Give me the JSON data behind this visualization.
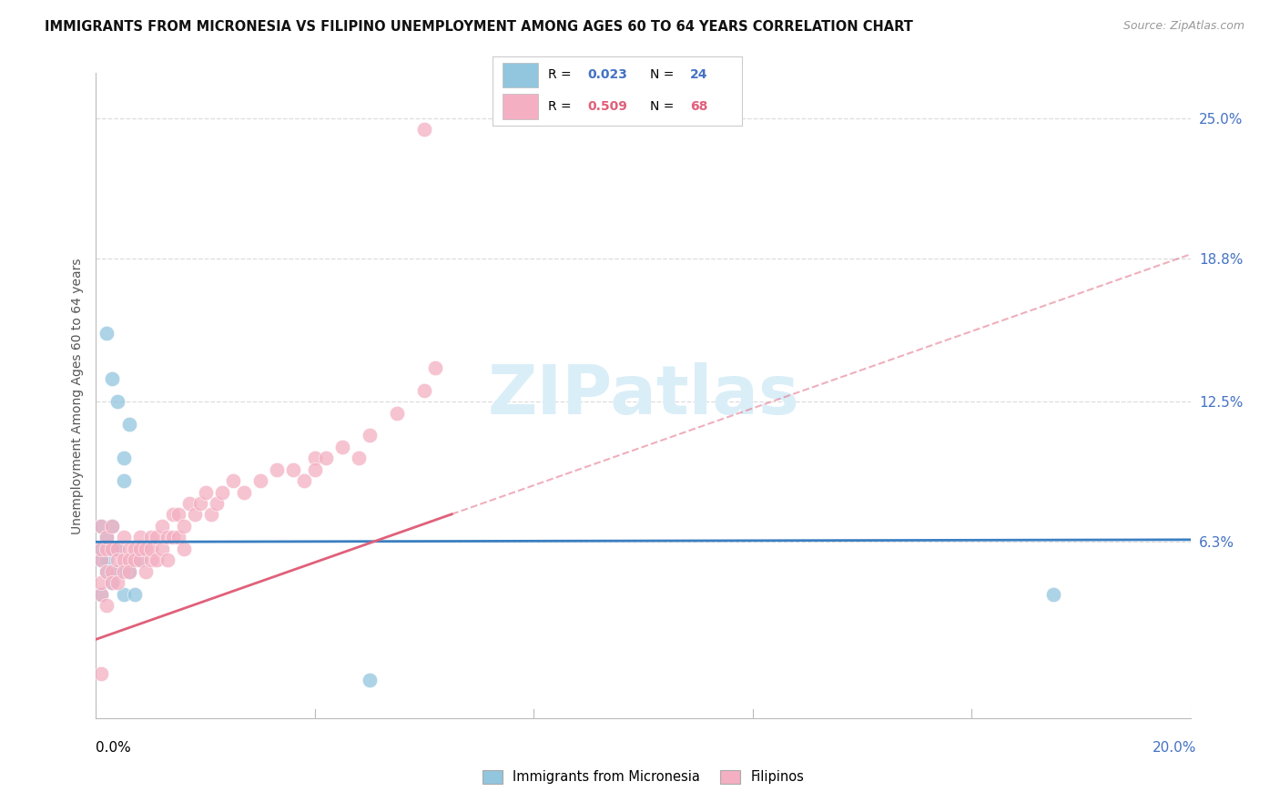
{
  "title": "IMMIGRANTS FROM MICRONESIA VS FILIPINO UNEMPLOYMENT AMONG AGES 60 TO 64 YEARS CORRELATION CHART",
  "source": "Source: ZipAtlas.com",
  "ylabel": "Unemployment Among Ages 60 to 64 years",
  "right_yticks": [
    0.063,
    0.125,
    0.188,
    0.25
  ],
  "right_yticklabels": [
    "6.3%",
    "12.5%",
    "18.8%",
    "25.0%"
  ],
  "xlim": [
    0.0,
    0.2
  ],
  "ylim": [
    -0.015,
    0.27
  ],
  "color_blue_fill": "#92c5de",
  "color_pink_fill": "#f4afc2",
  "color_blue_line": "#3a7fc1",
  "color_pink_line": "#e0607a",
  "color_grid": "#dddddd",
  "color_right_axis": "#4472c4",
  "watermark_color": "#daeef8",
  "mic_x": [
    0.001,
    0.001,
    0.001,
    0.001,
    0.002,
    0.002,
    0.002,
    0.003,
    0.003,
    0.003,
    0.004,
    0.004,
    0.005,
    0.006,
    0.007,
    0.008,
    0.002,
    0.003,
    0.004,
    0.005,
    0.05,
    0.175,
    0.005,
    0.006
  ],
  "mic_y": [
    0.055,
    0.06,
    0.07,
    0.04,
    0.055,
    0.065,
    0.05,
    0.06,
    0.045,
    0.07,
    0.05,
    0.06,
    0.04,
    0.05,
    0.04,
    0.055,
    0.155,
    0.135,
    0.125,
    0.1,
    0.002,
    0.04,
    0.09,
    0.115
  ],
  "fil_x": [
    0.001,
    0.001,
    0.001,
    0.001,
    0.001,
    0.002,
    0.002,
    0.002,
    0.002,
    0.003,
    0.003,
    0.003,
    0.003,
    0.004,
    0.004,
    0.004,
    0.005,
    0.005,
    0.005,
    0.006,
    0.006,
    0.006,
    0.007,
    0.007,
    0.008,
    0.008,
    0.008,
    0.009,
    0.009,
    0.01,
    0.01,
    0.01,
    0.011,
    0.011,
    0.012,
    0.012,
    0.013,
    0.013,
    0.014,
    0.014,
    0.015,
    0.015,
    0.016,
    0.016,
    0.017,
    0.018,
    0.019,
    0.02,
    0.021,
    0.022,
    0.023,
    0.025,
    0.027,
    0.03,
    0.033,
    0.036,
    0.038,
    0.04,
    0.04,
    0.042,
    0.045,
    0.048,
    0.05,
    0.055,
    0.06,
    0.062,
    0.001,
    0.06
  ],
  "fil_y": [
    0.04,
    0.055,
    0.06,
    0.07,
    0.045,
    0.05,
    0.06,
    0.035,
    0.065,
    0.05,
    0.06,
    0.045,
    0.07,
    0.045,
    0.06,
    0.055,
    0.055,
    0.065,
    0.05,
    0.06,
    0.055,
    0.05,
    0.06,
    0.055,
    0.065,
    0.055,
    0.06,
    0.06,
    0.05,
    0.065,
    0.055,
    0.06,
    0.055,
    0.065,
    0.06,
    0.07,
    0.065,
    0.055,
    0.065,
    0.075,
    0.075,
    0.065,
    0.06,
    0.07,
    0.08,
    0.075,
    0.08,
    0.085,
    0.075,
    0.08,
    0.085,
    0.09,
    0.085,
    0.09,
    0.095,
    0.095,
    0.09,
    0.1,
    0.095,
    0.1,
    0.105,
    0.1,
    0.11,
    0.12,
    0.13,
    0.14,
    0.005,
    0.245
  ],
  "pink_line_solid_end": 0.065,
  "blue_line_intercept": 0.063,
  "blue_line_slope": 0.005,
  "pink_line_intercept": 0.02,
  "pink_line_slope": 0.85
}
